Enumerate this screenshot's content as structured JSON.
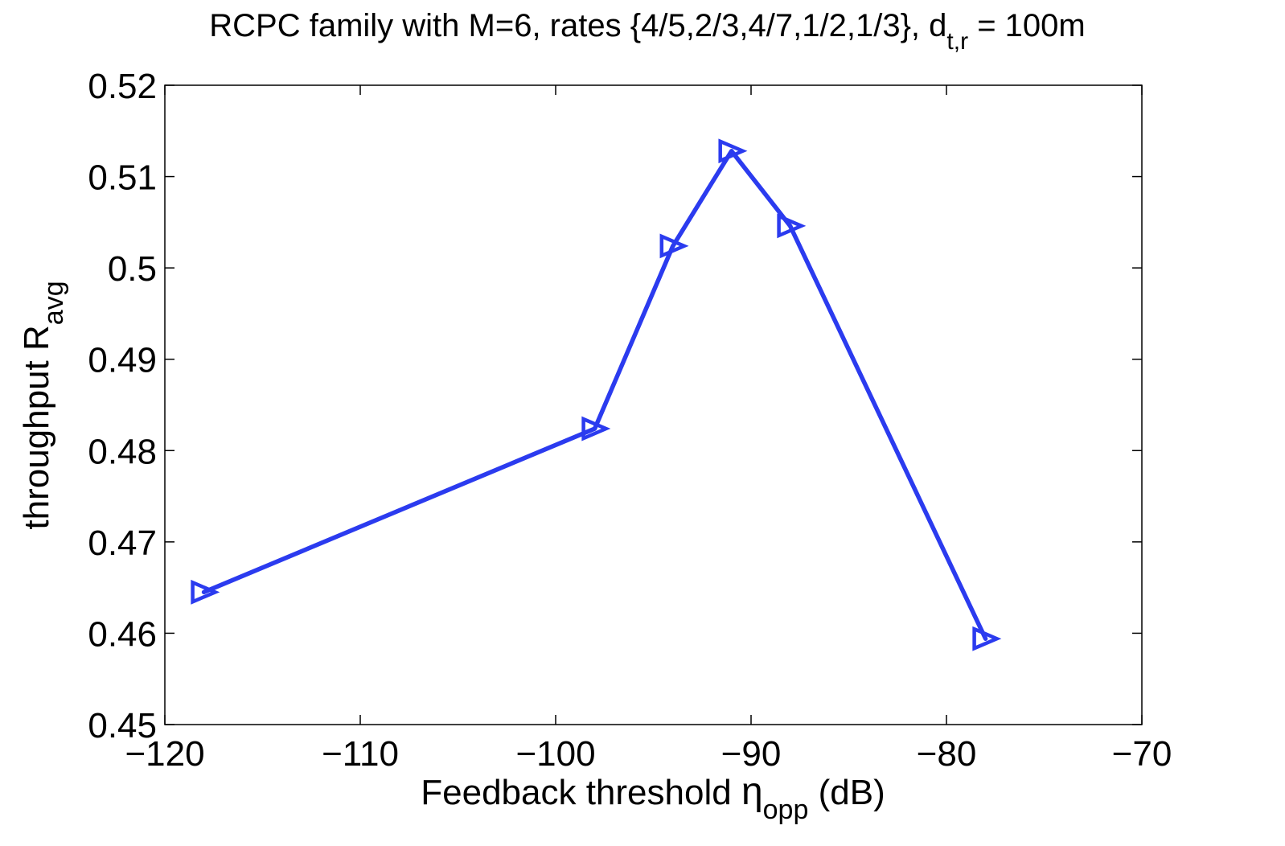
{
  "chart_data": {
    "type": "line",
    "title": {
      "main": "RCPC family with M=6, rates {4/5,2/3,4/7,1/2,1/3}, d",
      "sub": "t,r",
      "tail": " = 100m"
    },
    "xlabel": {
      "prefix": "Feedback threshold ",
      "symbol": "η",
      "sub": "opp",
      "suffix": " (dB)"
    },
    "ylabel": {
      "main": "throughput R",
      "sub": "avg"
    },
    "xlim": [
      -120,
      -70
    ],
    "ylim": [
      0.45,
      0.52
    ],
    "xticks": [
      -120,
      -110,
      -100,
      -90,
      -80,
      -70
    ],
    "xtick_labels": [
      "−120",
      "−110",
      "−100",
      "−90",
      "−80",
      "−70"
    ],
    "yticks": [
      0.45,
      0.46,
      0.47,
      0.48,
      0.49,
      0.5,
      0.51,
      0.52
    ],
    "ytick_labels": [
      "0.45",
      "0.46",
      "0.47",
      "0.48",
      "0.49",
      "0.5",
      "0.51",
      "0.52"
    ],
    "grid": false,
    "series": [
      {
        "color": "#2b3bef",
        "marker": "triangle-right",
        "x": [
          -118,
          -98,
          -94,
          -91,
          -88,
          -78
        ],
        "y": [
          0.4645,
          0.4824,
          0.5024,
          0.5128,
          0.5046,
          0.4594
        ]
      }
    ]
  }
}
